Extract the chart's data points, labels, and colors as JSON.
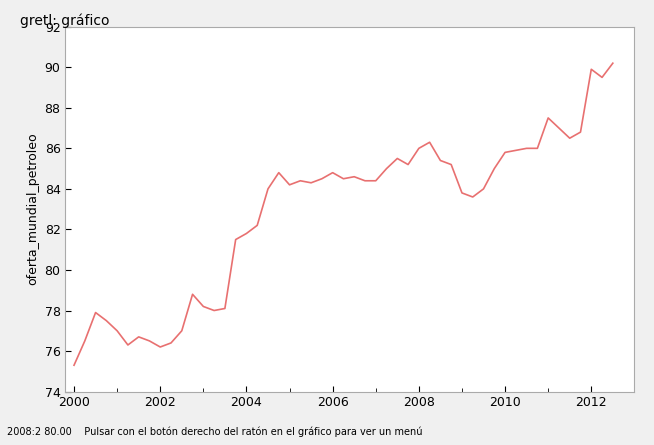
{
  "title": "gretl: gráfico",
  "ylabel": "oferta_mundial_petroleo",
  "xlabel": "",
  "line_color": "#e87070",
  "background_color": "#f0f0f0",
  "plot_background": "#ffffff",
  "ylim": [
    74,
    92
  ],
  "yticks": [
    74,
    76,
    78,
    80,
    82,
    84,
    86,
    88,
    90,
    92
  ],
  "xticks": [
    2000,
    2002,
    2004,
    2006,
    2008,
    2010,
    2012
  ],
  "time_values": [
    2000.0,
    2000.25,
    2000.5,
    2000.75,
    2001.0,
    2001.25,
    2001.5,
    2001.75,
    2002.0,
    2002.25,
    2002.5,
    2002.75,
    2003.0,
    2003.25,
    2003.5,
    2003.75,
    2004.0,
    2004.25,
    2004.5,
    2004.75,
    2005.0,
    2005.25,
    2005.5,
    2005.75,
    2006.0,
    2006.25,
    2006.5,
    2006.75,
    2007.0,
    2007.25,
    2007.5,
    2007.75,
    2008.0,
    2008.25,
    2008.5,
    2008.75,
    2009.0,
    2009.25,
    2009.5,
    2009.75,
    2010.0,
    2010.25,
    2010.5,
    2010.75,
    2011.0,
    2011.25,
    2011.5,
    2011.75,
    2012.0,
    2012.25,
    2012.5
  ],
  "values": [
    75.3,
    76.5,
    77.9,
    77.5,
    77.0,
    76.3,
    76.7,
    76.5,
    76.2,
    76.4,
    77.0,
    78.8,
    78.2,
    78.0,
    78.1,
    81.5,
    81.8,
    82.2,
    84.0,
    84.8,
    84.2,
    84.4,
    84.3,
    84.5,
    84.8,
    84.5,
    84.6,
    84.4,
    84.4,
    85.0,
    85.5,
    85.2,
    86.0,
    86.3,
    85.4,
    85.2,
    83.8,
    83.6,
    84.0,
    85.0,
    85.8,
    85.9,
    86.0,
    86.0,
    87.5,
    87.0,
    86.5,
    86.8,
    89.9,
    89.5,
    90.2
  ],
  "statusbar_text": "2008:2 80.00    Pulsar con el botón derecho del ratón en el gráfico para ver un menú",
  "line_width": 1.2
}
